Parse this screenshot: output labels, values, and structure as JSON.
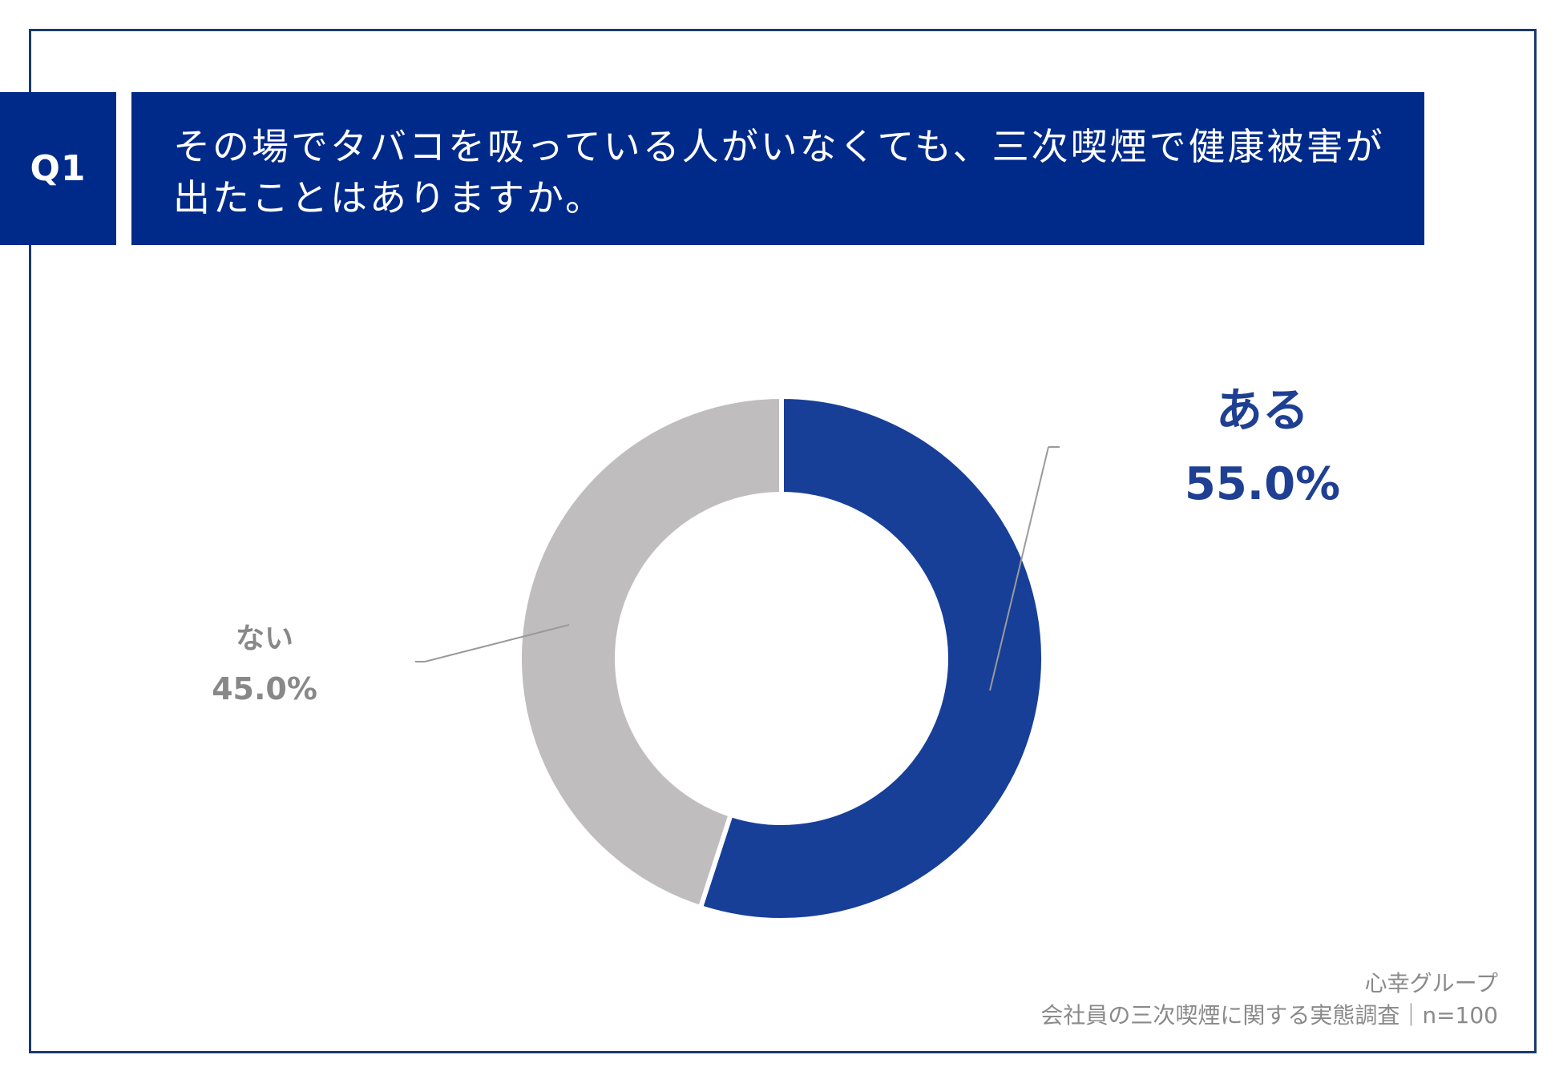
{
  "question": {
    "number": "Q1",
    "text": "その場でタバコを吸っている人がいなくても、三次喫煙で健康被害が出たことはありますか。"
  },
  "chart_data": {
    "type": "pie",
    "variant": "donut",
    "title": "",
    "slices": [
      {
        "label": "ある",
        "value": 55.0,
        "display": "55.0%",
        "color": "#173f98"
      },
      {
        "label": "ない",
        "value": 45.0,
        "display": "45.0%",
        "color": "#bfbdbe"
      }
    ],
    "start": "top",
    "direction": "clockwise",
    "legend": "none"
  },
  "source": {
    "organization": "心幸グループ",
    "survey": "会社員の三次喫煙に関する実態調査｜n=100"
  }
}
